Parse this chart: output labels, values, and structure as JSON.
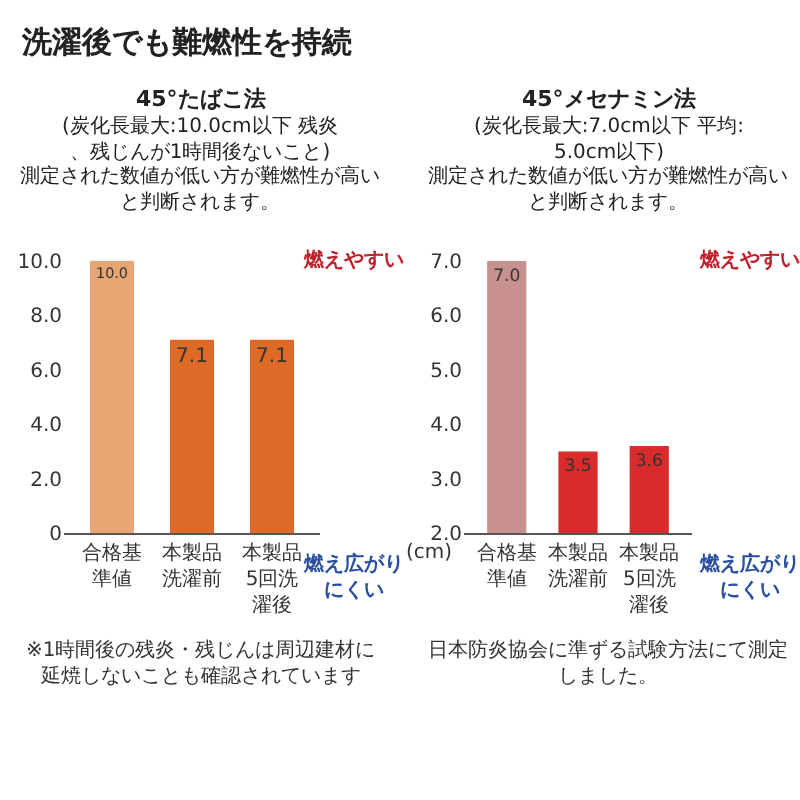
{
  "chart_data": [
    {
      "type": "bar",
      "title": "45°たばこ法",
      "subtitle": "(炭化長最大:10.0cm以下 残炎、残じんが1時間後ないこと)",
      "categories": [
        "合格基準値",
        "本製品洗濯前",
        "本製品5回洗濯後"
      ],
      "values": [
        10.0,
        7.1,
        7.1
      ],
      "colors": [
        "#e8a574",
        "#dd6a26",
        "#dd6a26"
      ],
      "value_labels": [
        "10.0",
        "7.1",
        "7.1"
      ],
      "ylim": [
        0,
        10
      ],
      "yticks": [
        {
          "value": 0,
          "label": "0"
        },
        {
          "value": 2,
          "label": "2.0"
        },
        {
          "value": 4,
          "label": "4.0"
        },
        {
          "value": 6,
          "label": "6.0"
        },
        {
          "value": 8,
          "label": "8.0"
        },
        {
          "value": 10,
          "label": "10.0"
        }
      ],
      "annotations": [
        "洗濯後でも難燃性を持続",
        "測定された数値が低い方が難燃性が高いと判断されます。",
        "燃えやすい",
        "燃え広がりにくい",
        "※1時間後の残炎・残じんは周辺建材に延焼しないことも確認されています"
      ],
      "legend": false
    },
    {
      "type": "bar",
      "title": "45°メセナミン法",
      "subtitle": "(炭化長最大:7.0cm以下 平均:5.0cm以下)",
      "categories": [
        "合格基準値",
        "本製品洗濯前",
        "本製品5回洗濯後"
      ],
      "values": [
        7.0,
        3.5,
        3.6
      ],
      "colors": [
        "#c8908f",
        "#d92b2b",
        "#d92b2b"
      ],
      "value_labels": [
        "7.0",
        "3.5",
        "3.6"
      ],
      "ylabel": "(cm)",
      "ylim": [
        2,
        7
      ],
      "yticks": [
        {
          "value": 2,
          "label": "2.0"
        },
        {
          "value": 3,
          "label": "3.0"
        },
        {
          "value": 4,
          "label": "4.0"
        },
        {
          "value": 5,
          "label": "5.0"
        },
        {
          "value": 6,
          "label": "6.0"
        },
        {
          "value": 7,
          "label": "7.0"
        }
      ],
      "annotations": [
        "測定された数値が低い方が難燃性が高いと判断されます。",
        "燃えやすい",
        "燃え広がりにくい",
        "日本防炎協会に準ずる試験方法にて測定しました。"
      ],
      "legend": false
    }
  ]
}
